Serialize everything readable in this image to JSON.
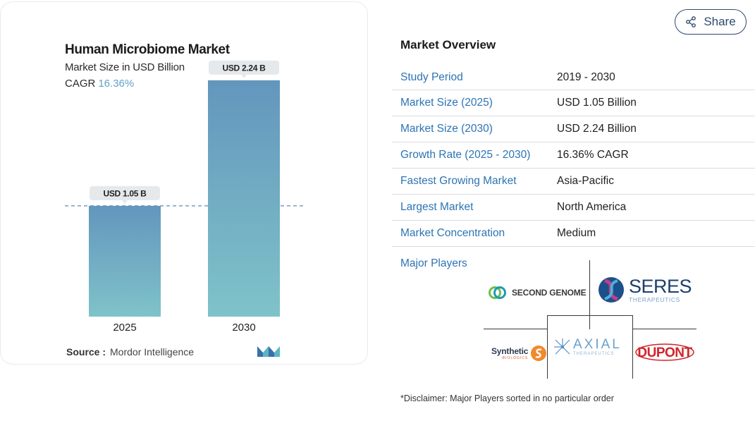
{
  "chart_card": {
    "title": "Human Microbiome Market",
    "subtitle": "Market Size in USD Billion",
    "cagr_label": "CAGR",
    "cagr_value": "16.36%",
    "source_label": "Source :",
    "source_value": "Mordor Intelligence"
  },
  "chart_data": {
    "type": "bar",
    "title": "Human Microbiome Market",
    "subtitle": "Market Size in USD Billion",
    "categories": [
      "2025",
      "2030"
    ],
    "values": [
      1.05,
      2.24
    ],
    "data_labels": [
      "USD 1.05 B",
      "USD 2.24 B"
    ],
    "ylim": [
      0,
      2.6
    ],
    "reference_line_value": 1.05,
    "bar_gradient_top": "#6396bd",
    "bar_gradient_bottom": "#7fc3c9",
    "grid": false
  },
  "share": {
    "label": "Share",
    "border_color": "#2f4a6e"
  },
  "overview": {
    "title": "Market Overview",
    "rows": [
      {
        "label": "Study Period",
        "value": "2019 - 2030"
      },
      {
        "label": "Market Size (2025)",
        "value": "USD 1.05 Billion"
      },
      {
        "label": "Market Size (2030)",
        "value": "USD 2.24 Billion"
      },
      {
        "label": "Growth Rate (2025 - 2030)",
        "value": "16.36% CAGR"
      },
      {
        "label": "Fastest Growing Market",
        "value": "Asia-Pacific"
      },
      {
        "label": "Largest Market",
        "value": "North America"
      },
      {
        "label": "Market Concentration",
        "value": "Medium"
      }
    ],
    "label_color": "#2d74b3",
    "players_label": "Major Players",
    "players": [
      {
        "name": "SECOND GENOME",
        "icon": "second-genome-logo"
      },
      {
        "name": "SERES",
        "sub": "THERAPEUTICS",
        "icon": "seres-logo"
      },
      {
        "name": "Synthetic",
        "sub": "BIOLOGICS",
        "icon": "synthetic-biologics-logo"
      },
      {
        "name": "AXIAL",
        "sub": "THERAPEUTICS",
        "icon": "axial-logo"
      },
      {
        "name": "DUPONT",
        "icon": "dupont-logo"
      }
    ],
    "disclaimer": "*Disclaimer: Major Players sorted in no particular order"
  }
}
